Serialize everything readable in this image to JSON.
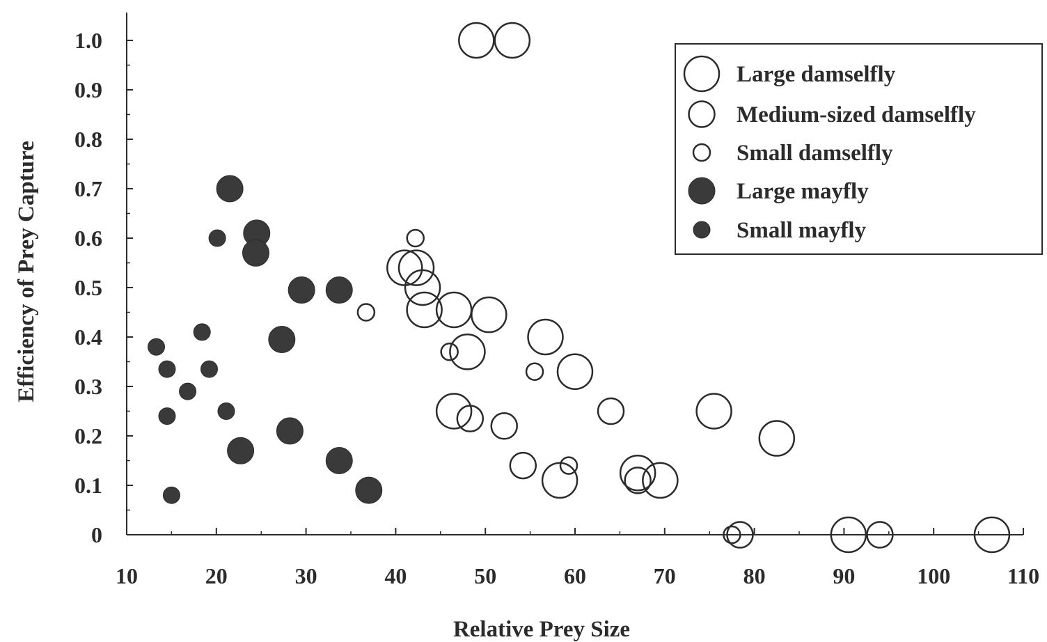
{
  "chart_data": {
    "type": "scatter",
    "xlabel": "Relative Prey Size",
    "ylabel": "Efficiency of Prey Capture",
    "xlim": [
      10,
      110
    ],
    "ylim": [
      0,
      1.0
    ],
    "x_ticks": [
      "10",
      "20",
      "30",
      "40",
      "50",
      "60",
      "70",
      "80",
      "90",
      "100",
      "110"
    ],
    "y_ticks": [
      "0",
      "0.1",
      "0.2",
      "0.3",
      "0.4",
      "0.5",
      "0.6",
      "0.7",
      "0.8",
      "0.9",
      "1.0"
    ],
    "grid": false,
    "legend_position": "top-right",
    "series": [
      {
        "name": "Large damselfly",
        "marker": "open-large",
        "points": [
          [
            49,
            1.0
          ],
          [
            53,
            1.0
          ],
          [
            41,
            0.54
          ],
          [
            42.3,
            0.54
          ],
          [
            43,
            0.5
          ],
          [
            43.2,
            0.455
          ],
          [
            46.5,
            0.455
          ],
          [
            50.4,
            0.445
          ],
          [
            56.7,
            0.4
          ],
          [
            48,
            0.37
          ],
          [
            60,
            0.33
          ],
          [
            46.5,
            0.25
          ],
          [
            75.5,
            0.25
          ],
          [
            82.5,
            0.195
          ],
          [
            58.3,
            0.11
          ],
          [
            67,
            0.125
          ],
          [
            69.5,
            0.11
          ],
          [
            90.5,
            0.0
          ],
          [
            106.5,
            0.0
          ]
        ]
      },
      {
        "name": "Medium-sized damselfly",
        "marker": "open-medium",
        "points": [
          [
            48.3,
            0.235
          ],
          [
            52.1,
            0.22
          ],
          [
            54.2,
            0.14
          ],
          [
            64,
            0.25
          ],
          [
            67,
            0.11
          ],
          [
            78.4,
            0.0
          ],
          [
            94,
            0.0
          ]
        ]
      },
      {
        "name": "Small damselfly",
        "marker": "open-small",
        "points": [
          [
            42.2,
            0.6
          ],
          [
            36.7,
            0.45
          ],
          [
            46,
            0.37
          ],
          [
            55.5,
            0.33
          ],
          [
            59.3,
            0.14
          ],
          [
            77.5,
            0.0
          ]
        ]
      },
      {
        "name": "Large mayfly",
        "marker": "filled-large",
        "points": [
          [
            21.5,
            0.7
          ],
          [
            24.5,
            0.61
          ],
          [
            24.4,
            0.57
          ],
          [
            29.5,
            0.495
          ],
          [
            33.7,
            0.495
          ],
          [
            27.3,
            0.395
          ],
          [
            28.2,
            0.21
          ],
          [
            22.7,
            0.17
          ],
          [
            33.7,
            0.15
          ],
          [
            37,
            0.09
          ]
        ]
      },
      {
        "name": "Small mayfly",
        "marker": "filled-small",
        "points": [
          [
            20.1,
            0.6
          ],
          [
            18.4,
            0.41
          ],
          [
            13.3,
            0.38
          ],
          [
            14.5,
            0.335
          ],
          [
            19.2,
            0.335
          ],
          [
            16.8,
            0.29
          ],
          [
            14.5,
            0.24
          ],
          [
            21.1,
            0.25
          ],
          [
            15,
            0.08
          ]
        ]
      }
    ]
  },
  "colors": {
    "ink": "#2b2b2b",
    "fill": "#3a3a3a",
    "background": "#ffffff"
  }
}
